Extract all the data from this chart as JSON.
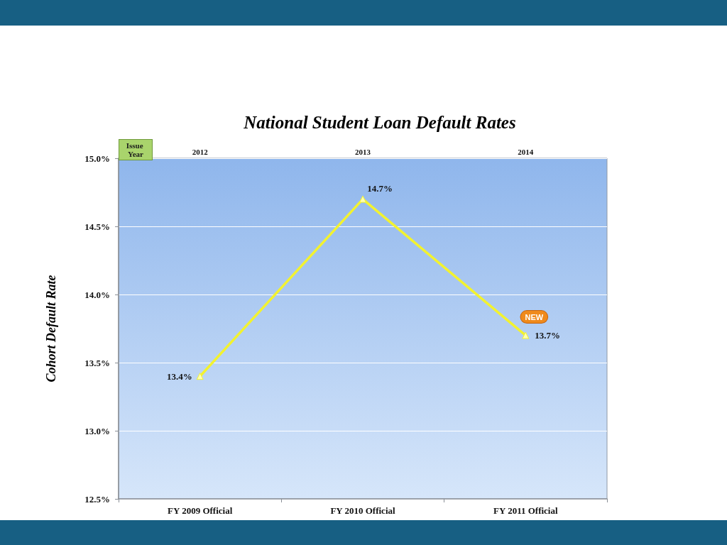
{
  "chart_data": {
    "type": "line",
    "title": "National Student Loan Default Rates",
    "ylabel": "Cohort Default Rate",
    "x2label": "Issue Year",
    "categories": [
      "FY 2009 Official",
      "FY 2010 Official",
      "FY 2011 Official"
    ],
    "series": [
      {
        "color": "#f2f230",
        "values": [
          13.4,
          14.7,
          13.7
        ],
        "value_labels": [
          "13.4%",
          "14.7%",
          "13.7%"
        ]
      }
    ],
    "ylim": [
      12.5,
      15
    ],
    "yticks": [
      {
        "value": 12.5,
        "label": "12.5%"
      },
      {
        "value": 13,
        "label": "13.0%"
      },
      {
        "value": 13.5,
        "label": "13.5%"
      },
      {
        "value": 14,
        "label": "14.0%"
      },
      {
        "value": 14.5,
        "label": "14.5%"
      },
      {
        "value": 15,
        "label": "15.0%"
      }
    ],
    "x2lim": [
      2011.5,
      2014.5
    ],
    "x2ticks": [
      2012,
      2013,
      2014
    ],
    "grid": "y",
    "marker": "triangle",
    "line_style": "solid",
    "annotations": [
      {
        "text": "NEW",
        "x": "FY 2011 Official",
        "y": 13.7
      }
    ]
  }
}
